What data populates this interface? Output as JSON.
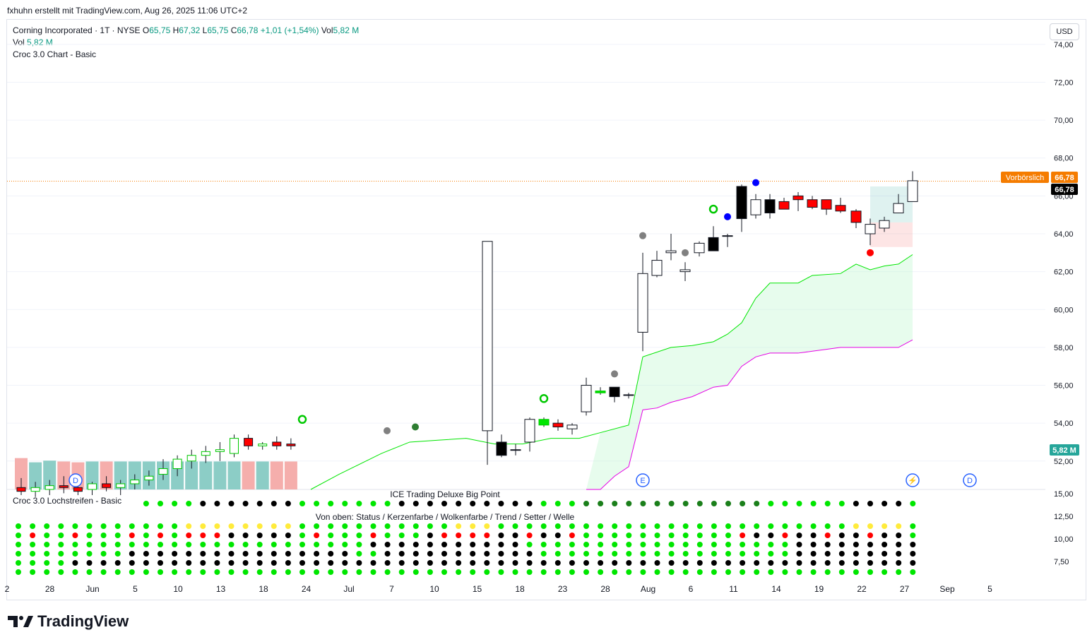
{
  "header": {
    "attribution": "fxhuhn erstellt mit TradingView.com, Aug 26, 2025 11:06 UTC+2"
  },
  "legend": {
    "symbol": "Corning Incorporated · 1T · NYSE",
    "o_label": "O",
    "o": "65,75",
    "h_label": "H",
    "h": "67,32",
    "l_label": "L",
    "l": "65,75",
    "c_label": "C",
    "c": "66,78",
    "change": "+1,01 (+1,54%)",
    "vol_label": "Vol",
    "vol": "5,82 M",
    "line2_label": "Vol",
    "line2_value": "5,82 M",
    "indicator": "Croc 3.0 Chart - Basic"
  },
  "currency_button": "USD",
  "price_badges": {
    "premarket_label": "Vorbörslich",
    "premarket_value": "66,78",
    "last_value": "66,78",
    "volume_value": "5,82 M"
  },
  "lower_pane": {
    "label": "Croc 3.0 Lochstreifen - Basic",
    "title_top": "ICE Trading Deluxe Big Point",
    "title_mid": "Von oben: Status / Kerzenfarbe / Wolkenfarbe / Trend / Setter / Welle",
    "y_ticks": [
      "15,00",
      "12,50",
      "10,00",
      "7,50"
    ]
  },
  "footer": {
    "brand": "TradingView"
  },
  "colors": {
    "up": "#26a69a",
    "down": "#ef5350",
    "cloud_upper": "#00e600",
    "cloud_lower": "#e600e6",
    "premarket": "#f57c00",
    "green_dot": "#00e600",
    "red_dot": "#ff0000",
    "yellow_dot": "#ffeb3b",
    "black_dot": "#000000"
  },
  "chart_data": {
    "type": "candlestick",
    "title": "Corning Incorporated · 1T · NYSE",
    "ylim": [
      50.5,
      75.3
    ],
    "y_ticks": [
      "74,00",
      "72,00",
      "70,00",
      "68,00",
      "66,00",
      "64,00",
      "62,00",
      "60,00",
      "58,00",
      "56,00",
      "54,00",
      "52,00"
    ],
    "y_tick_values": [
      74,
      72,
      70,
      68,
      66,
      64,
      62,
      60,
      58,
      56,
      54,
      52
    ],
    "x_tick_labels": [
      "2",
      "28",
      "Jun",
      "5",
      "10",
      "13",
      "18",
      "24",
      "Jul",
      "7",
      "10",
      "15",
      "18",
      "23",
      "28",
      "Aug",
      "6",
      "11",
      "14",
      "19",
      "22",
      "27",
      "Sep",
      "5"
    ],
    "last_price_line": 66.78,
    "volume_unit": "M",
    "candles": [
      {
        "o": 50.6,
        "h": 51.1,
        "l": 50.2,
        "c": 50.4,
        "fill": "red",
        "v": 3.7
      },
      {
        "o": 50.4,
        "h": 50.9,
        "l": 50.1,
        "c": 50.6,
        "fill": "red",
        "v": 3.2
      },
      {
        "o": 50.5,
        "h": 51.0,
        "l": 50.2,
        "c": 50.7,
        "fill": "red",
        "v": 3.4
      },
      {
        "o": 50.7,
        "h": 51.2,
        "l": 50.3,
        "c": 50.6,
        "fill": "red",
        "v": 3.3
      },
      {
        "o": 50.6,
        "h": 51.0,
        "l": 50.2,
        "c": 50.4,
        "fill": "red",
        "v": 3.2
      },
      {
        "o": 50.5,
        "h": 50.9,
        "l": 50.2,
        "c": 50.8,
        "fill": "red",
        "v": 3.3
      },
      {
        "o": 50.8,
        "h": 51.2,
        "l": 50.4,
        "c": 50.6,
        "fill": "red",
        "v": 3.3
      },
      {
        "o": 50.6,
        "h": 51.0,
        "l": 50.2,
        "c": 50.8,
        "fill": "red",
        "v": 3.3
      },
      {
        "o": 50.8,
        "h": 51.3,
        "l": 50.5,
        "c": 51.0,
        "fill": "red",
        "v": 3.3
      },
      {
        "o": 51.0,
        "h": 51.5,
        "l": 50.7,
        "c": 51.2,
        "fill": "red",
        "v": 3.3
      },
      {
        "o": 51.3,
        "h": 52.1,
        "l": 51.0,
        "c": 51.6,
        "fill": "red",
        "v": 3.3
      },
      {
        "o": 51.6,
        "h": 52.3,
        "l": 51.2,
        "c": 52.1,
        "fill": "red",
        "v": 3.3
      },
      {
        "o": 52.0,
        "h": 52.6,
        "l": 51.6,
        "c": 52.3,
        "fill": "red",
        "v": 3.3
      },
      {
        "o": 52.3,
        "h": 52.8,
        "l": 51.9,
        "c": 52.5,
        "fill": "red",
        "v": 3.3
      },
      {
        "o": 52.5,
        "h": 53.0,
        "l": 52.0,
        "c": 52.6,
        "fill": "red",
        "v": 3.3
      },
      {
        "o": 52.4,
        "h": 53.4,
        "l": 52.2,
        "c": 53.2,
        "fill": "red",
        "v": 3.3
      },
      {
        "o": 53.2,
        "h": 53.4,
        "l": 52.6,
        "c": 52.8,
        "fill": "red",
        "v": 3.3
      },
      {
        "o": 52.8,
        "h": 53.0,
        "l": 52.6,
        "c": 52.9,
        "fill": "red",
        "v": 3.3
      },
      {
        "o": 53.0,
        "h": 53.3,
        "l": 52.6,
        "c": 52.8,
        "fill": "red",
        "v": 3.3
      },
      {
        "o": 52.9,
        "h": 53.2,
        "l": 52.6,
        "c": 52.8,
        "fill": "red",
        "v": 3.3
      }
    ]
  }
}
